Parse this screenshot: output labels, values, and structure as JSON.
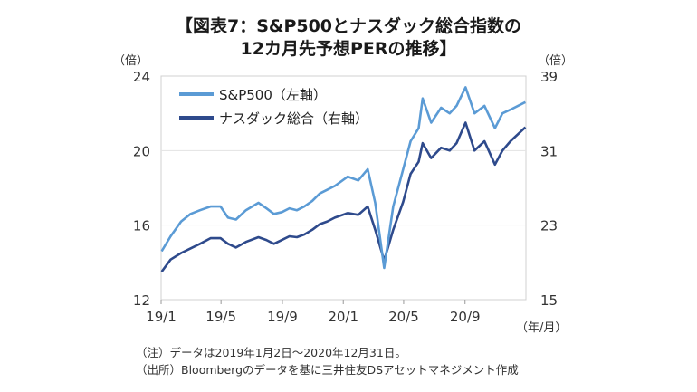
{
  "title_line1": "【図表7：S&P500とナスダック総合指数の",
  "title_line2": "12カ月先予想PERの推移】",
  "left_unit": "（倍）",
  "right_unit": "（倍）",
  "x_unit": "（年/月）",
  "note": "（注）データは2019年1月2日～2020年12月31日。",
  "source": "（出所）Bloombergのデータを基に三井住友DSアセットマネジメント作成",
  "colors": {
    "sp500": "#5b9bd5",
    "nasdaq": "#2e4a8c"
  },
  "chart_data": {
    "type": "line",
    "x_ticks": [
      "19/1",
      "19/5",
      "19/9",
      "20/1",
      "20/5",
      "20/9"
    ],
    "y_left": {
      "ticks": [
        "12",
        "16",
        "20",
        "24"
      ],
      "range": [
        12,
        24
      ]
    },
    "y_right": {
      "ticks": [
        "15",
        "23",
        "31",
        "39"
      ],
      "range": [
        15,
        39
      ]
    },
    "legend_position": "top-left",
    "series": [
      {
        "name": "S&P500（左軸）",
        "axis": "left",
        "x": [
          "2019-01-02",
          "2019-01-20",
          "2019-02-10",
          "2019-03-01",
          "2019-03-20",
          "2019-04-10",
          "2019-04-30",
          "2019-05-15",
          "2019-05-31",
          "2019-06-20",
          "2019-07-15",
          "2019-07-31",
          "2019-08-15",
          "2019-08-31",
          "2019-09-15",
          "2019-09-30",
          "2019-10-15",
          "2019-10-31",
          "2019-11-15",
          "2019-11-30",
          "2019-12-15",
          "2020-01-10",
          "2020-01-31",
          "2020-02-19",
          "2020-03-05",
          "2020-03-23",
          "2020-04-10",
          "2020-04-30",
          "2020-05-15",
          "2020-05-31",
          "2020-06-08",
          "2020-06-25",
          "2020-07-15",
          "2020-08-01",
          "2020-08-15",
          "2020-09-02",
          "2020-09-20",
          "2020-10-10",
          "2020-10-31",
          "2020-11-15",
          "2020-12-01",
          "2020-12-31"
        ],
        "values": [
          14.6,
          15.4,
          16.2,
          16.6,
          16.8,
          17.0,
          17.0,
          16.4,
          16.3,
          16.8,
          17.2,
          16.9,
          16.6,
          16.7,
          16.9,
          16.8,
          17.0,
          17.3,
          17.7,
          17.9,
          18.1,
          18.6,
          18.4,
          19.0,
          17.2,
          13.7,
          17.0,
          19.0,
          20.5,
          21.2,
          22.8,
          21.5,
          22.3,
          22.0,
          22.4,
          23.4,
          22.0,
          22.4,
          21.2,
          22.0,
          22.2,
          22.6
        ]
      },
      {
        "name": "ナスダック総合（右軸）",
        "axis": "right",
        "x": [
          "2019-01-02",
          "2019-01-20",
          "2019-02-10",
          "2019-03-01",
          "2019-03-20",
          "2019-04-10",
          "2019-04-30",
          "2019-05-15",
          "2019-05-31",
          "2019-06-20",
          "2019-07-15",
          "2019-07-31",
          "2019-08-15",
          "2019-08-31",
          "2019-09-15",
          "2019-09-30",
          "2019-10-15",
          "2019-10-31",
          "2019-11-15",
          "2019-11-30",
          "2019-12-15",
          "2020-01-10",
          "2020-01-31",
          "2020-02-19",
          "2020-03-05",
          "2020-03-23",
          "2020-04-10",
          "2020-04-30",
          "2020-05-15",
          "2020-05-31",
          "2020-06-08",
          "2020-06-25",
          "2020-07-15",
          "2020-08-01",
          "2020-08-15",
          "2020-09-02",
          "2020-09-20",
          "2020-10-10",
          "2020-10-31",
          "2020-11-15",
          "2020-12-01",
          "2020-12-31"
        ],
        "values": [
          18.0,
          19.3,
          20.0,
          20.5,
          21.0,
          21.6,
          21.6,
          21.0,
          20.6,
          21.2,
          21.7,
          21.4,
          21.0,
          21.4,
          21.8,
          21.7,
          22.0,
          22.5,
          23.1,
          23.4,
          23.8,
          24.3,
          24.1,
          25.0,
          22.5,
          19.2,
          22.5,
          25.5,
          28.5,
          29.8,
          31.8,
          30.2,
          31.3,
          31.0,
          31.8,
          34.0,
          31.0,
          32.0,
          29.5,
          31.0,
          32.0,
          33.5
        ]
      }
    ]
  }
}
